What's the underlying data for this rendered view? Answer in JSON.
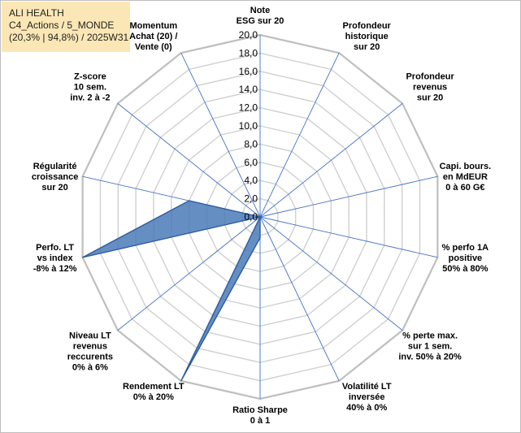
{
  "header": {
    "line1": "ALI HEALTH",
    "line2": "C4_Actions / 5_MONDE",
    "line3": "(20,3% | 94,8%) / 2025W31"
  },
  "colors": {
    "grid": "#d0d0d0",
    "spoke": "#4472c4",
    "fill": "#4a7ab8",
    "stroke": "#2e5c9e"
  },
  "chart_data": {
    "type": "radar",
    "range": [
      0,
      20
    ],
    "tick_step": 2,
    "ticks": [
      "0,0",
      "2,0",
      "4,0",
      "6,0",
      "8,0",
      "10,0",
      "12,0",
      "14,0",
      "16,0",
      "18,0",
      "20,0"
    ],
    "axes": [
      [
        "Note",
        "ESG sur 20"
      ],
      [
        "Profondeur",
        "historique",
        "sur 20"
      ],
      [
        "Profondeur",
        "revenus",
        "sur 20"
      ],
      [
        "Capi. bours.",
        "en MdEUR",
        "0 à 60 G€"
      ],
      [
        "% perfo 1A",
        "positive",
        "50% à 80%"
      ],
      [
        "% perte max.",
        "sur 1 sem.",
        "inv. 50% à 20%"
      ],
      [
        "Volatilité LT",
        "inversée",
        "40% à 0%"
      ],
      [
        "Ratio Sharpe",
        "0 à 1"
      ],
      [
        "Rendement LT",
        "0% à 20%"
      ],
      [
        "Niveau LT",
        "revenus",
        "reccurents",
        "0% à 6%"
      ],
      [
        "Perfo. LT",
        "vs index",
        "-8% à 12%"
      ],
      [
        "Régularité",
        "croissance",
        "sur 20"
      ],
      [
        "Z-score",
        "10 sem.",
        "inv. 2 à -2"
      ],
      [
        "Momentum",
        "Achat (20) /",
        "Vente (0)"
      ]
    ],
    "series": [
      {
        "values": [
          0,
          0,
          0,
          0,
          0,
          0,
          0,
          2.3,
          20,
          0,
          20,
          8,
          0,
          0
        ]
      }
    ]
  }
}
